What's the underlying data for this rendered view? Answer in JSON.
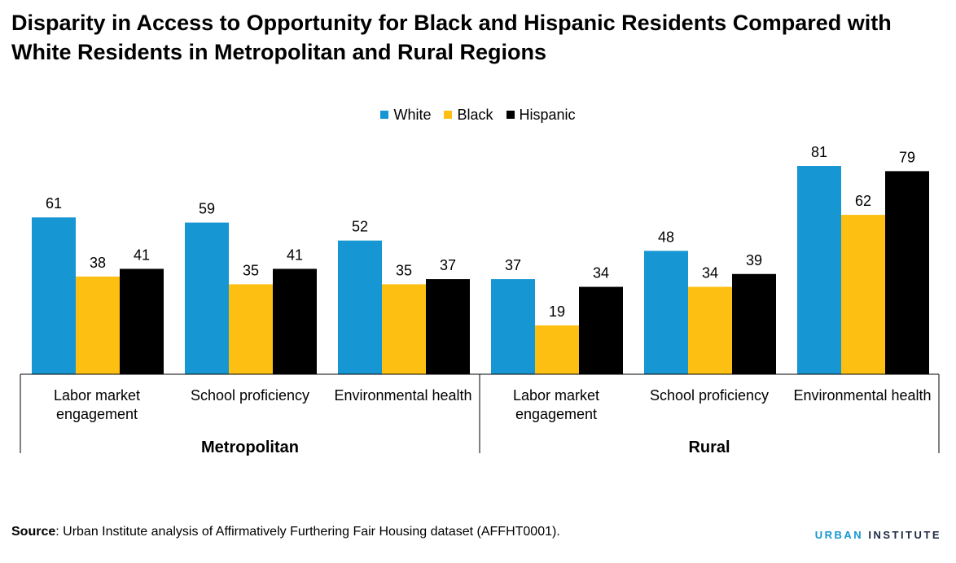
{
  "title": "Disparity in Access to Opportunity for Black and Hispanic Residents Compared with White Residents in Metropolitan and Rural Regions",
  "source_label": "Source",
  "source_text": ": Urban Institute analysis of Affirmatively Furthering Fair Housing dataset (AFFHT0001).",
  "logo": {
    "part1": "URBAN",
    "part2": "INSTITUTE"
  },
  "colors": {
    "White": "#1696d2",
    "Black": "#fdbf11",
    "Hispanic": "#000000"
  },
  "chart_data": {
    "type": "bar",
    "legend_position": "top",
    "grid": false,
    "ylim": [
      0,
      90
    ],
    "groups": [
      "Metropolitan",
      "Rural"
    ],
    "categories": [
      "Labor market engagement",
      "School proficiency",
      "Environmental health",
      "Labor market engagement",
      "School proficiency",
      "Environmental health"
    ],
    "category_group": [
      "Metropolitan",
      "Metropolitan",
      "Metropolitan",
      "Rural",
      "Rural",
      "Rural"
    ],
    "series": [
      {
        "name": "White",
        "values": [
          61,
          59,
          52,
          37,
          48,
          81
        ]
      },
      {
        "name": "Black",
        "values": [
          38,
          35,
          35,
          19,
          34,
          62
        ]
      },
      {
        "name": "Hispanic",
        "values": [
          41,
          41,
          37,
          34,
          39,
          79
        ]
      }
    ]
  }
}
